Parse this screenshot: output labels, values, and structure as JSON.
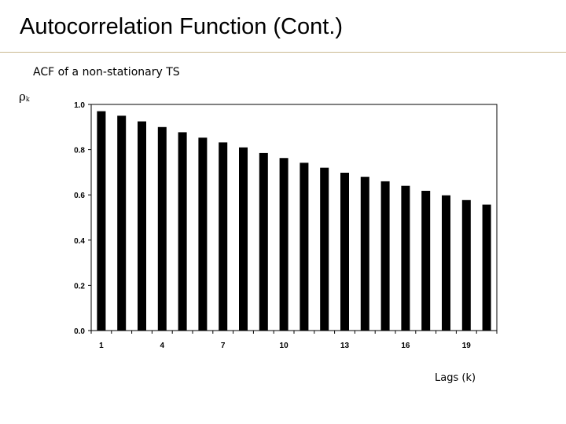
{
  "slide": {
    "title": "Autocorrelation Function (Cont.)"
  },
  "chart_data": {
    "type": "bar",
    "title": "ACF of a non-stationary  TS",
    "ylabel": "ρ",
    "ylabel_subscript": "k",
    "xlabel": "Lags (k)",
    "categories": [
      1,
      2,
      3,
      4,
      5,
      6,
      7,
      8,
      9,
      10,
      11,
      12,
      13,
      14,
      15,
      16,
      17,
      18,
      19,
      20
    ],
    "values": [
      0.97,
      0.95,
      0.925,
      0.9,
      0.877,
      0.853,
      0.832,
      0.81,
      0.785,
      0.763,
      0.742,
      0.72,
      0.698,
      0.68,
      0.66,
      0.64,
      0.618,
      0.598,
      0.577,
      0.557
    ],
    "x_tick_labels": [
      "1",
      "4",
      "7",
      "10",
      "13",
      "16",
      "19"
    ],
    "x_tick_categories": [
      1,
      4,
      7,
      10,
      13,
      16,
      19
    ],
    "y_ticks": [
      0.0,
      0.2,
      0.4,
      0.6,
      0.8,
      1.0
    ],
    "y_tick_labels": [
      "0.0",
      "0.2",
      "0.4",
      "0.6",
      "0.8",
      "1.0"
    ],
    "ylim": [
      0,
      1
    ],
    "grid": false,
    "legend": "none",
    "bar_color": "#000000"
  }
}
